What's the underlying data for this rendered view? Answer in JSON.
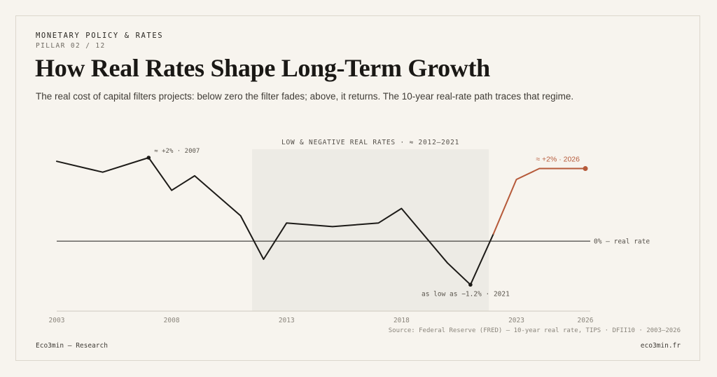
{
  "header": {
    "kicker": "MONETARY POLICY & RATES",
    "pillar": "PILLAR 02 / 12",
    "title": "How Real Rates Shape Long-Term Growth",
    "subtitle": "The real cost of capital filters projects: below zero the filter fades; above, it returns. The 10-year real-rate path traces that regime."
  },
  "chart_data": {
    "type": "line",
    "title": "",
    "xlabel": "",
    "ylabel": "",
    "xlim": [
      2003,
      2026
    ],
    "ylim": [
      -1.6,
      2.3
    ],
    "x_ticks": [
      "2003",
      "2008",
      "2013",
      "2018",
      "2023",
      "2026"
    ],
    "grid": false,
    "legend": "none",
    "baseline": {
      "y": 0,
      "label": "0% — real rate"
    },
    "shaded_region": {
      "x0": 2011.5,
      "x1": 2021.8,
      "label": "LOW & NEGATIVE REAL RATES · ≈ 2012–2021"
    },
    "series": [
      {
        "color": "#1d1b18",
        "points": [
          [
            2003,
            2.2
          ],
          [
            2005,
            1.9
          ],
          [
            2007,
            2.3
          ],
          [
            2008,
            1.4
          ],
          [
            2009,
            1.8
          ],
          [
            2011,
            0.7
          ],
          [
            2012,
            -0.5
          ],
          [
            2013,
            0.5
          ],
          [
            2015,
            0.4
          ],
          [
            2017,
            0.5
          ],
          [
            2018,
            0.9
          ],
          [
            2020,
            -0.6
          ],
          [
            2021,
            -1.2
          ],
          [
            2022,
            0.2
          ]
        ]
      },
      {
        "color": "#b65a3a",
        "points": [
          [
            2022,
            0.2
          ],
          [
            2023,
            1.7
          ],
          [
            2024,
            2.0
          ],
          [
            2025,
            2.0
          ],
          [
            2026,
            2.0
          ]
        ]
      }
    ],
    "annotations": [
      {
        "text": "≈ +2% · 2007",
        "x": 2007,
        "y": 2.3,
        "color": "#5a554d"
      },
      {
        "text": "as low as −1.2% · 2021",
        "x": 2021,
        "y": -1.2,
        "color": "#5a554d"
      },
      {
        "text": "≈ +2% · 2026",
        "x": 2026,
        "y": 2.0,
        "color": "#b65a3a"
      }
    ]
  },
  "source": "Source: Federal Reserve (FRED) — 10-year real rate, TIPS · DFII10 · 2003–2026",
  "footer": {
    "left": "Eco3min — Research",
    "right": "eco3min.fr"
  }
}
